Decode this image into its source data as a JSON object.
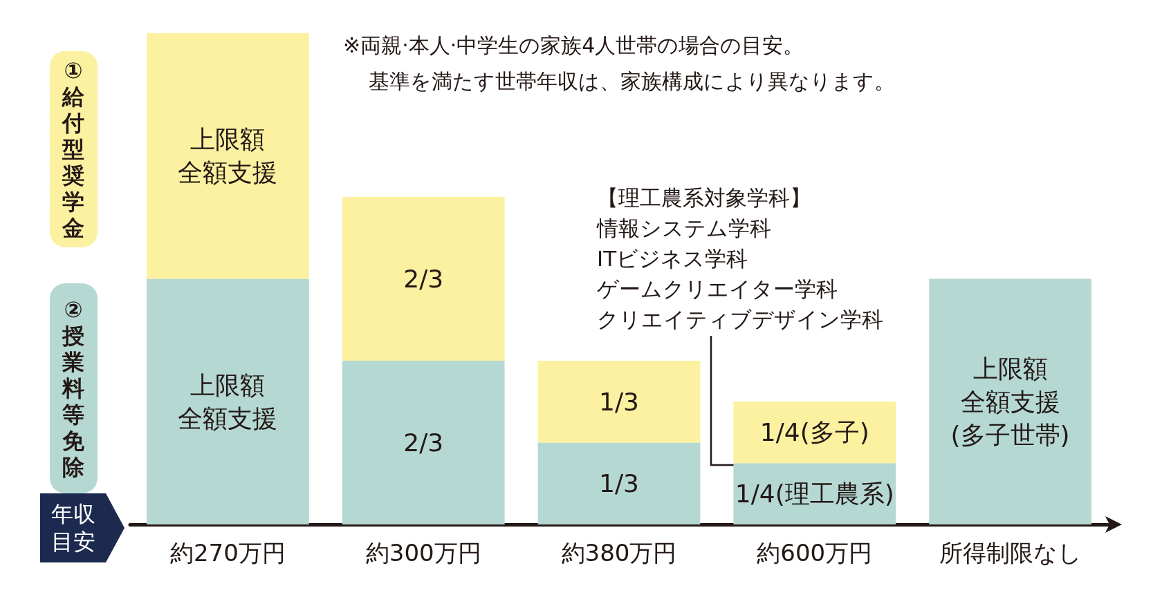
{
  "chart_data": {
    "type": "bar",
    "stacked": true,
    "ylim": [
      0,
      2
    ],
    "tick_labels": "x",
    "xlabel": "年収目安",
    "legend": "left",
    "categories": [
      "約270万円",
      "約300万円",
      "約380万円",
      "約600万円",
      "所得制限なし"
    ],
    "series": [
      {
        "name": "②授業料等免除",
        "color": "#b5d8d3",
        "values": [
          1,
          0.6667,
          0.3333,
          0.25,
          1
        ],
        "value_labels": [
          "上限額全額支援",
          "2/3",
          "1/3",
          "1/4(理工農系)",
          "上限額全額支援(多子世帯)"
        ]
      },
      {
        "name": "①給付型奨学金",
        "color": "#fbf1a0",
        "values": [
          1,
          0.6667,
          0.3333,
          0.25,
          null
        ],
        "value_labels": [
          "上限額全額支援",
          "2/3",
          "1/3",
          "1/4(多子)",
          null
        ]
      }
    ],
    "annotations": [
      "※両親·本人·中学生の家族4人世帯の場合の目安。",
      "基準を満たす世帯年収は、家族構成により異なります。",
      "【理工農系対象学科】",
      "情報システム学科",
      "ITビジネス学科",
      "ゲームクリエイター学科",
      "クリエイティブデザイン学科"
    ]
  }
}
